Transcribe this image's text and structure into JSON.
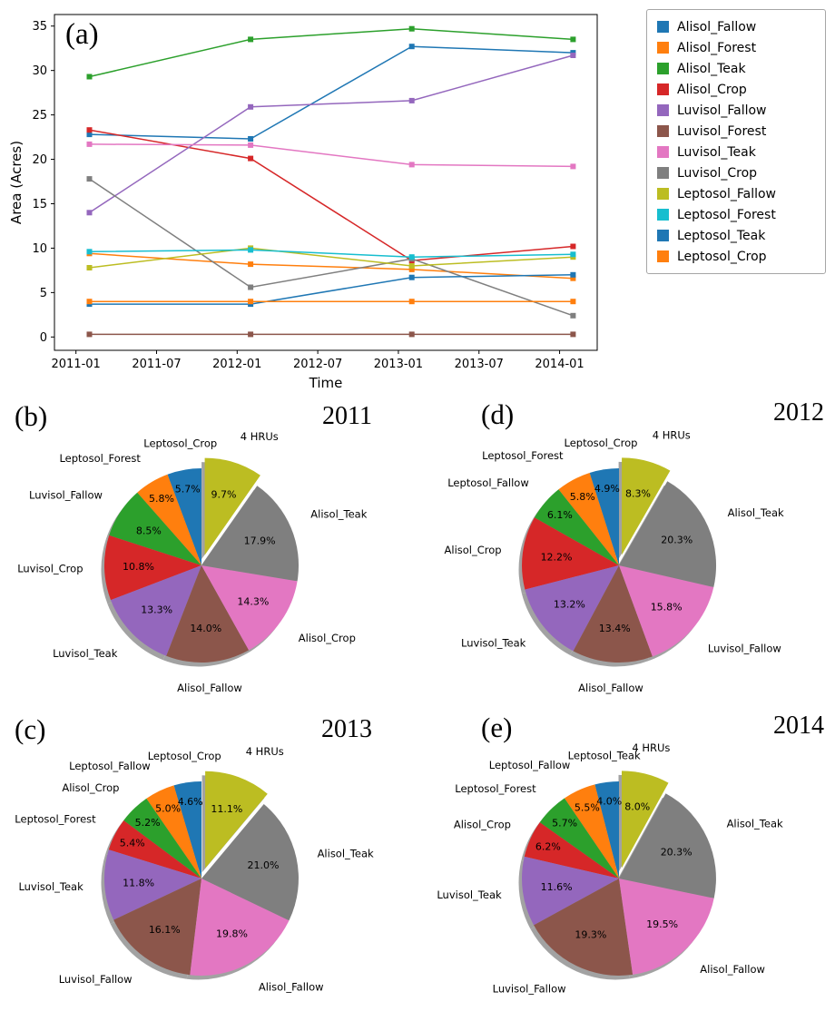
{
  "panels": {
    "a": {
      "letter": "(a)"
    },
    "b": {
      "letter": "(b)",
      "year": "2011"
    },
    "c": {
      "letter": "(c)",
      "year": "2013"
    },
    "d": {
      "letter": "(d)",
      "year": "2012"
    },
    "e": {
      "letter": "(e)",
      "year": "2014"
    }
  },
  "chart_data": [
    {
      "id": "line-chart",
      "type": "line",
      "panel": "(a)",
      "xlabel": "Time",
      "ylabel": "Area (Acres)",
      "marker": "square",
      "x_tick_labels": [
        "2011-01",
        "2011-07",
        "2012-01",
        "2012-07",
        "2013-01",
        "2013-07",
        "2014-01"
      ],
      "x_tick_months": [
        0,
        6,
        12,
        18,
        24,
        30,
        36
      ],
      "x_data_labels": [
        "2011-01",
        "2012-01",
        "2013-01",
        "2014-01"
      ],
      "x_data_months": [
        1,
        13,
        25,
        37
      ],
      "xlim_months": [
        -1.6,
        38.8
      ],
      "y_ticks": [
        0,
        5,
        10,
        15,
        20,
        25,
        30,
        35
      ],
      "ylim": [
        -1.5,
        36.3
      ],
      "legend_position": "outside upper right",
      "series": [
        {
          "name": "Alisol_Fallow",
          "color": "#1f77b4",
          "values": [
            22.8,
            22.3,
            32.7,
            32.0
          ]
        },
        {
          "name": "Alisol_Forest",
          "color": "#ff7f0e",
          "values": [
            9.4,
            8.2,
            7.6,
            6.6
          ]
        },
        {
          "name": "Alisol_Teak",
          "color": "#2ca02c",
          "values": [
            29.3,
            33.5,
            34.7,
            33.5
          ]
        },
        {
          "name": "Alisol_Crop",
          "color": "#d62728",
          "values": [
            23.3,
            20.1,
            8.6,
            10.2
          ]
        },
        {
          "name": "Luvisol_Fallow",
          "color": "#9467bd",
          "values": [
            14.0,
            25.9,
            26.6,
            31.7
          ]
        },
        {
          "name": "Luvisol_Forest",
          "color": "#8c564b",
          "values": [
            0.3,
            0.3,
            0.3,
            0.3
          ]
        },
        {
          "name": "Luvisol_Teak",
          "color": "#e377c2",
          "values": [
            21.7,
            21.6,
            19.4,
            19.2
          ]
        },
        {
          "name": "Luvisol_Crop",
          "color": "#7f7f7f",
          "values": [
            17.8,
            5.6,
            8.8,
            2.4
          ]
        },
        {
          "name": "Leptosol_Fallow",
          "color": "#bcbd22",
          "values": [
            7.8,
            10.0,
            8.0,
            9.0
          ]
        },
        {
          "name": "Leptosol_Forest",
          "color": "#17becf",
          "values": [
            9.6,
            9.8,
            9.0,
            9.3
          ]
        },
        {
          "name": "Leptosol_Teak",
          "color": "#1f77b4",
          "values": [
            3.7,
            3.7,
            6.7,
            7.0
          ]
        },
        {
          "name": "Leptosol_Crop",
          "color": "#ff7f0e",
          "values": [
            4.0,
            4.0,
            4.0,
            4.0
          ]
        }
      ]
    },
    {
      "id": "pie-2011",
      "type": "pie",
      "panel": "(b)",
      "year": "2011",
      "start_angle": 90,
      "direction": "ccw",
      "slices": [
        {
          "label": "Leptosol_Crop",
          "pct": 5.7,
          "color": "#1f77b4"
        },
        {
          "label": "Leptosol_Forest",
          "pct": 5.8,
          "color": "#ff7f0e"
        },
        {
          "label": "Luvisol_Fallow",
          "pct": 8.5,
          "color": "#2ca02c"
        },
        {
          "label": "Luvisol_Crop",
          "pct": 10.8,
          "color": "#d62728"
        },
        {
          "label": "Luvisol_Teak",
          "pct": 13.3,
          "color": "#9467bd"
        },
        {
          "label": "Alisol_Fallow",
          "pct": 14.0,
          "color": "#8c564b"
        },
        {
          "label": "Alisol_Crop",
          "pct": 14.3,
          "color": "#e377c2"
        },
        {
          "label": "Alisol_Teak",
          "pct": 17.9,
          "color": "#7f7f7f"
        },
        {
          "label": "4 HRUs",
          "pct": 9.7,
          "color": "#bcbd22",
          "exploded": true
        }
      ]
    },
    {
      "id": "pie-2012",
      "type": "pie",
      "panel": "(d)",
      "year": "2012",
      "start_angle": 90,
      "direction": "ccw",
      "slices": [
        {
          "label": "Leptosol_Crop",
          "pct": 4.9,
          "color": "#1f77b4"
        },
        {
          "label": "Leptosol_Forest",
          "pct": 5.8,
          "color": "#ff7f0e"
        },
        {
          "label": "Leptosol_Fallow",
          "pct": 6.1,
          "color": "#2ca02c"
        },
        {
          "label": "Alisol_Crop",
          "pct": 12.2,
          "color": "#d62728"
        },
        {
          "label": "Luvisol_Teak",
          "pct": 13.2,
          "color": "#9467bd"
        },
        {
          "label": "Alisol_Fallow",
          "pct": 13.4,
          "color": "#8c564b"
        },
        {
          "label": "Luvisol_Fallow",
          "pct": 15.8,
          "color": "#e377c2"
        },
        {
          "label": "Alisol_Teak",
          "pct": 20.3,
          "color": "#7f7f7f"
        },
        {
          "label": "4 HRUs",
          "pct": 8.3,
          "color": "#bcbd22",
          "exploded": true
        }
      ]
    },
    {
      "id": "pie-2013",
      "type": "pie",
      "panel": "(c)",
      "year": "2013",
      "start_angle": 90,
      "direction": "ccw",
      "slices": [
        {
          "label": "Leptosol_Crop",
          "pct": 4.6,
          "color": "#1f77b4"
        },
        {
          "label": "Leptosol_Fallow",
          "pct": 5.0,
          "color": "#ff7f0e"
        },
        {
          "label": "Alisol_Crop",
          "pct": 5.2,
          "color": "#2ca02c"
        },
        {
          "label": "Leptosol_Forest",
          "pct": 5.4,
          "color": "#d62728"
        },
        {
          "label": "Luvisol_Teak",
          "pct": 11.8,
          "color": "#9467bd"
        },
        {
          "label": "Luvisol_Fallow",
          "pct": 16.1,
          "color": "#8c564b"
        },
        {
          "label": "Alisol_Fallow",
          "pct": 19.8,
          "color": "#e377c2"
        },
        {
          "label": "Alisol_Teak",
          "pct": 21.0,
          "color": "#7f7f7f"
        },
        {
          "label": "4 HRUs",
          "pct": 11.1,
          "color": "#bcbd22",
          "exploded": true
        }
      ]
    },
    {
      "id": "pie-2014",
      "type": "pie",
      "panel": "(e)",
      "year": "2014",
      "start_angle": 90,
      "direction": "ccw",
      "slices": [
        {
          "label": "Leptosol_Teak",
          "pct": 4.0,
          "color": "#1f77b4"
        },
        {
          "label": "Leptosol_Fallow",
          "pct": 5.5,
          "color": "#ff7f0e"
        },
        {
          "label": "Leptosol_Forest",
          "pct": 5.7,
          "color": "#2ca02c"
        },
        {
          "label": "Alisol_Crop",
          "pct": 6.2,
          "color": "#d62728"
        },
        {
          "label": "Luvisol_Teak",
          "pct": 11.6,
          "color": "#9467bd"
        },
        {
          "label": "Luvisol_Fallow",
          "pct": 19.3,
          "color": "#8c564b"
        },
        {
          "label": "Alisol_Fallow",
          "pct": 19.5,
          "color": "#e377c2"
        },
        {
          "label": "Alisol_Teak",
          "pct": 20.3,
          "color": "#7f7f7f"
        },
        {
          "label": "4 HRUs",
          "pct": 8.0,
          "color": "#bcbd22",
          "exploded": true
        }
      ]
    }
  ]
}
